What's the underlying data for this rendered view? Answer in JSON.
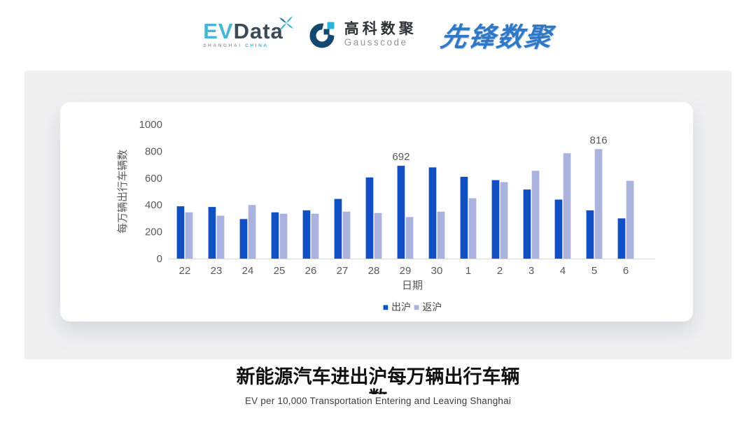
{
  "header": {
    "evdata_logo": {
      "ev": "EV",
      "data": "Data",
      "sub_left": "SHANGHAI",
      "sub_right": "CHINA"
    },
    "gausscode_logo": {
      "cn": "高科数聚",
      "en": "Gausscode"
    },
    "pioneer_logo": {
      "text": "先锋数聚"
    }
  },
  "footer": {
    "title_line1": "新能源汽车进出沪每万辆出行车辆",
    "title_line2": "数",
    "subtitle": "EV per 10,000 Transportation Entering and Leaving Shanghai"
  },
  "colors": {
    "evdata_cyan": "#45b5d9",
    "evdata_dark": "#3b4a57",
    "gausscode_navy": "#15486e",
    "gausscode_teal": "#28b4d8",
    "pioneer_blue": "#2e78c6",
    "panel_gray": "#f0f0f1",
    "bar_primary": "#1150c4",
    "bar_secondary": "#a9b3dd",
    "axis_text": "#595959",
    "axis_line": "#d9d9d9"
  },
  "chart_data": {
    "type": "bar",
    "title": "",
    "categories": [
      "22",
      "23",
      "24",
      "25",
      "26",
      "27",
      "28",
      "29",
      "30",
      "1",
      "2",
      "3",
      "4",
      "5",
      "6"
    ],
    "series": [
      {
        "name": "出沪",
        "color": "#1150c4",
        "values": [
          390,
          385,
          295,
          345,
          360,
          445,
          605,
          692,
          680,
          610,
          585,
          515,
          440,
          360,
          300
        ]
      },
      {
        "name": "返沪",
        "color": "#a9b3dd",
        "values": [
          345,
          320,
          400,
          335,
          335,
          350,
          340,
          310,
          350,
          450,
          570,
          655,
          785,
          816,
          580
        ]
      }
    ],
    "xlabel": "日期",
    "ylabel": "每万辆出行车辆数",
    "ylim": [
      0,
      1000
    ],
    "ytick_interval": 200,
    "grid": false,
    "legend_position": "bottom",
    "data_labels": [
      {
        "series": 0,
        "index": 7,
        "text": "692"
      },
      {
        "series": 1,
        "index": 13,
        "text": "816"
      }
    ]
  }
}
